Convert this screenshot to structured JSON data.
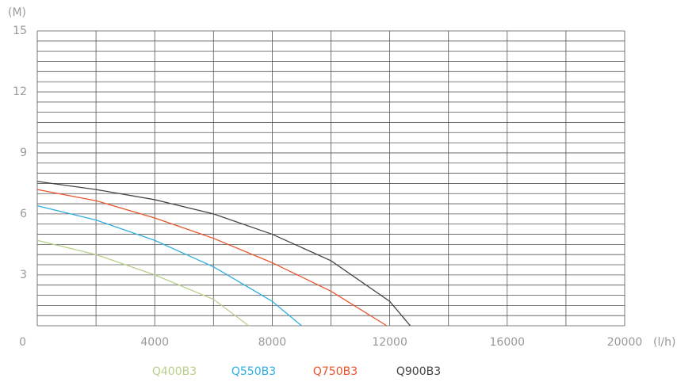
{
  "chart_data": {
    "type": "line",
    "y_label": "(M)",
    "x_label": "(l/h)",
    "xlim": [
      0,
      20000
    ],
    "xticks": [
      0,
      4000,
      8000,
      12000,
      16000,
      20000
    ],
    "x_grid": [
      0,
      2000,
      4000,
      6000,
      8000,
      10000,
      12000,
      14000,
      16000,
      18000,
      20000
    ],
    "ylim": [
      0.5,
      15
    ],
    "yticks": [
      3,
      6,
      9,
      12,
      15
    ],
    "y_grid": [
      0.5,
      1,
      1.5,
      2,
      2.5,
      3,
      3.5,
      4,
      4.5,
      5,
      5.5,
      6,
      6.5,
      7,
      7.5,
      8,
      8.5,
      9,
      9.5,
      10,
      10.5,
      11,
      11.5,
      12,
      12.5,
      13,
      13.5,
      14,
      14.5,
      15
    ],
    "grid": true,
    "series": [
      {
        "name": "Q400B3",
        "color": "#b8cf8a",
        "x": [
          0,
          2000,
          4000,
          6000,
          7200
        ],
        "values": [
          4.7,
          4.0,
          3.0,
          1.8,
          0.5
        ]
      },
      {
        "name": "Q550B3",
        "color": "#2eaee0",
        "x": [
          0,
          2000,
          4000,
          6000,
          8000,
          9000
        ],
        "values": [
          6.4,
          5.7,
          4.7,
          3.4,
          1.7,
          0.5
        ]
      },
      {
        "name": "Q750B3",
        "color": "#e8542c",
        "x": [
          0,
          2000,
          4000,
          6000,
          8000,
          10000,
          11900
        ],
        "values": [
          7.2,
          6.65,
          5.8,
          4.8,
          3.6,
          2.2,
          0.5
        ]
      },
      {
        "name": "Q900B3",
        "color": "#444444",
        "x": [
          0,
          2000,
          4000,
          6000,
          8000,
          10000,
          12000,
          12700
        ],
        "values": [
          7.6,
          7.2,
          6.7,
          6.0,
          5.0,
          3.7,
          1.7,
          0.5
        ]
      }
    ]
  }
}
